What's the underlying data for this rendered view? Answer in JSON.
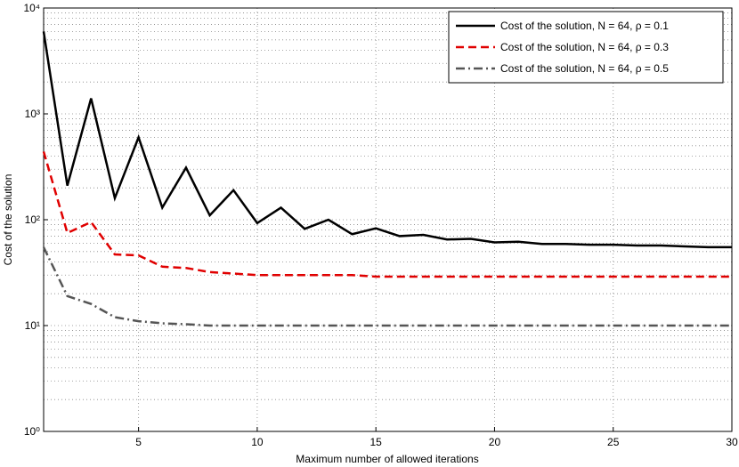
{
  "chart_data": {
    "type": "line",
    "x_label": "Maximum number of allowed iterations",
    "y_label": "Cost of the solution",
    "x": [
      1,
      2,
      3,
      4,
      5,
      6,
      7,
      8,
      9,
      10,
      11,
      12,
      13,
      14,
      15,
      16,
      17,
      18,
      19,
      20,
      21,
      22,
      23,
      24,
      25,
      26,
      27,
      28,
      29,
      30
    ],
    "series": [
      {
        "name": "Cost of the solution, N = 64, ρ = 0.1",
        "color": "#000000",
        "dash": "solid",
        "values": [
          6000,
          210,
          1400,
          160,
          600,
          130,
          310,
          110,
          190,
          93,
          130,
          82,
          100,
          73,
          83,
          70,
          72,
          65,
          66,
          61,
          62,
          59,
          59,
          58,
          58,
          57,
          57,
          56,
          55,
          55
        ]
      },
      {
        "name": "Cost of the solution, N = 64, ρ = 0.3",
        "color": "#e00000",
        "dash": "dashed",
        "values": [
          440,
          75,
          95,
          47,
          46,
          36,
          35,
          32,
          31,
          30,
          30,
          30,
          30,
          30,
          29,
          29,
          29,
          29,
          29,
          29,
          29,
          29,
          29,
          29,
          29,
          29,
          29,
          29,
          29,
          29
        ]
      },
      {
        "name": "Cost of the solution, N = 64, ρ = 0.5",
        "color": "#555555",
        "dash": "dashdot",
        "values": [
          55,
          19,
          16,
          12,
          11,
          10.5,
          10.3,
          10,
          10,
          10,
          10,
          10,
          10,
          10,
          10,
          10,
          10,
          10,
          10,
          10,
          10,
          10,
          10,
          10,
          10,
          10,
          10,
          10,
          10,
          10
        ]
      }
    ],
    "xlim": [
      1,
      30
    ],
    "xticks": [
      5,
      10,
      15,
      20,
      25,
      30
    ],
    "ylim": [
      1,
      10000
    ],
    "y_scale": "log",
    "yticks": [
      {
        "value": 1,
        "label": "10⁰"
      },
      {
        "value": 10,
        "label": "10¹"
      },
      {
        "value": 100,
        "label": "10²"
      },
      {
        "value": 1000,
        "label": "10³"
      },
      {
        "value": 10000,
        "label": "10⁴"
      }
    ],
    "grid": true,
    "legend_position": "upper right"
  }
}
